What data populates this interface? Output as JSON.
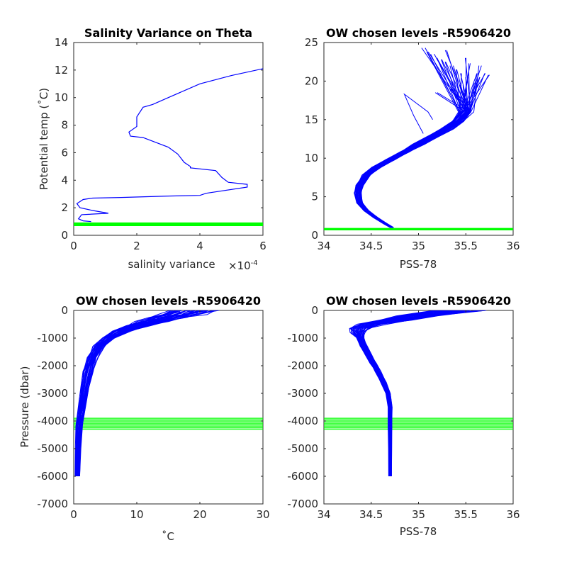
{
  "colors": {
    "profile": "#0000ff",
    "chosen_levels": "#00ff00",
    "axes": "#262626"
  },
  "chart_data": [
    {
      "id": "tl",
      "type": "line",
      "title": "Salinity Variance on Theta",
      "xlabel": "salinity variance",
      "x_exponent": "×10",
      "x_exponent_power": "-4",
      "ylabel": "Potential temp (˚C)",
      "xlim": [
        0,
        6
      ],
      "ylim": [
        0,
        14
      ],
      "xticks": [
        0,
        2,
        4,
        6
      ],
      "yticks": [
        0,
        2,
        4,
        6,
        8,
        10,
        12,
        14
      ],
      "xtick_labels": [
        "0",
        "2",
        "4",
        "6"
      ],
      "ytick_labels": [
        "0",
        "2",
        "4",
        "6",
        "8",
        "10",
        "12",
        "14"
      ],
      "series": [
        {
          "x": [
            0.55,
            0.3,
            0.15,
            0.25,
            1.1,
            0.6,
            0.2,
            0.1,
            0.3,
            0.6,
            1.5,
            3.0,
            4.0,
            4.2,
            5.5,
            5.5,
            4.9,
            4.7,
            4.5,
            3.7,
            3.7,
            3.5,
            3.3,
            3.0,
            2.2,
            1.8,
            1.75,
            2.0,
            2.0,
            2.2,
            2.5,
            3.0,
            4.0,
            5.0,
            6.0
          ],
          "y": [
            1.0,
            1.05,
            1.2,
            1.5,
            1.6,
            1.8,
            2.0,
            2.3,
            2.6,
            2.7,
            2.75,
            2.85,
            2.9,
            3.05,
            3.5,
            3.7,
            3.85,
            4.2,
            4.7,
            4.9,
            5.0,
            5.3,
            5.9,
            6.4,
            7.1,
            7.2,
            7.5,
            7.9,
            8.6,
            9.3,
            9.5,
            10.0,
            11.0,
            11.6,
            12.1
          ]
        }
      ],
      "chosen_levels": {
        "orientation": "horizontal",
        "values": [
          0.7,
          0.75,
          0.8,
          0.85,
          0.9
        ]
      }
    },
    {
      "id": "tr",
      "type": "line",
      "title": "OW chosen levels -R5906420",
      "xlabel": "PSS-78",
      "ylabel": "",
      "xlim": [
        34,
        36
      ],
      "ylim": [
        0,
        25
      ],
      "xticks": [
        34,
        34.5,
        35,
        35.5,
        36
      ],
      "yticks": [
        0,
        5,
        10,
        15,
        20,
        25
      ],
      "xtick_labels": [
        "34",
        "34.5",
        "35",
        "35.5",
        "36"
      ],
      "ytick_labels": [
        "0",
        "5",
        "10",
        "15",
        "20",
        "25"
      ],
      "profile_base": {
        "x": [
          34.72,
          34.65,
          34.55,
          34.45,
          34.38,
          34.36,
          34.38,
          34.45,
          34.55,
          34.7,
          34.85,
          35.0,
          35.15,
          35.3,
          35.42,
          35.5
        ],
        "y": [
          1.0,
          1.5,
          2.3,
          3.2,
          4.2,
          5.5,
          6.5,
          7.8,
          8.8,
          9.8,
          10.8,
          11.8,
          12.8,
          13.8,
          14.8,
          16.0
        ]
      },
      "profile_count": 44,
      "profile_x_spread": 0.1,
      "profile_tops": {
        "x": [
          35.05,
          35.1,
          35.15,
          35.2,
          35.25,
          35.3,
          35.35,
          35.4,
          35.45,
          35.5,
          35.55,
          35.6,
          35.65,
          35.7,
          35.75,
          35.45,
          35.2,
          35.35,
          35.6,
          35.5,
          35.3,
          35.65
        ],
        "y": [
          24.3,
          23.8,
          23.5,
          23.0,
          22.8,
          22.5,
          22.0,
          21.5,
          21.0,
          20.5,
          22.3,
          21.0,
          20.5,
          21.0,
          20.8,
          19.5,
          18.5,
          19.0,
          19.8,
          23.0,
          24.0,
          22.0
        ]
      },
      "stray_profile": {
        "x": [
          35.05,
          34.95,
          34.85,
          35.1,
          35.15
        ],
        "y": [
          13.2,
          15.5,
          18.3,
          16.0,
          15.0
        ]
      },
      "chosen_levels": {
        "orientation": "horizontal",
        "values": [
          0.7,
          0.75,
          0.8,
          0.85,
          0.9
        ]
      }
    },
    {
      "id": "bl",
      "type": "line",
      "title": "OW chosen levels -R5906420",
      "xlabel": "˚C",
      "ylabel": "Pressure (dbar)",
      "xlim": [
        0,
        30
      ],
      "ylim": [
        -7000,
        0
      ],
      "xticks": [
        0,
        10,
        20,
        30
      ],
      "yticks": [
        -7000,
        -6000,
        -5000,
        -4000,
        -3000,
        -2000,
        -1000,
        0
      ],
      "xtick_labels": [
        "0",
        "10",
        "20",
        "30"
      ],
      "ytick_labels": [
        "-7000",
        "-6000",
        "-5000",
        "-4000",
        "-3000",
        "-2000",
        "-1000",
        "0"
      ],
      "profile_base": {
        "x": [
          0.6,
          0.7,
          0.9,
          1.3,
          1.8,
          2.3,
          3.0,
          4.0,
          5.5,
          7.5,
          10.0,
          12.5,
          15.0,
          17.0,
          19.0
        ],
        "y": [
          -6000,
          -5000,
          -4200,
          -3500,
          -2800,
          -2200,
          -1700,
          -1300,
          -1000,
          -750,
          -550,
          -400,
          -250,
          -150,
          0
        ]
      },
      "profile_count": 40,
      "profile_x_spread": 2.0,
      "profile_top_x_spread": 5.5,
      "chosen_levels": {
        "orientation": "horizontal",
        "values": [
          -3900,
          -3950,
          -4000,
          -4050,
          -4100,
          -4150,
          -4200,
          -4250,
          -4300
        ]
      }
    },
    {
      "id": "br",
      "type": "line",
      "title": "OW chosen levels -R5906420",
      "xlabel": "PSS-78",
      "ylabel": "",
      "xlim": [
        34,
        36
      ],
      "ylim": [
        -7000,
        0
      ],
      "xticks": [
        34,
        34.5,
        35,
        35.5,
        36
      ],
      "yticks": [
        -7000,
        -6000,
        -5000,
        -4000,
        -3000,
        -2000,
        -1000,
        0
      ],
      "xtick_labels": [
        "34",
        "34.5",
        "35",
        "35.5",
        "36"
      ],
      "ytick_labels": [
        "-7000",
        "-6000",
        "-5000",
        "-4000",
        "-3000",
        "-2000",
        "-1000",
        "0"
      ],
      "profile_base": {
        "x": [
          34.7,
          34.7,
          34.7,
          34.7,
          34.68,
          34.63,
          34.57,
          34.52,
          34.47,
          34.42,
          34.38,
          34.36,
          34.38,
          34.5,
          34.75,
          35.0,
          35.2,
          35.4
        ],
        "y": [
          -6000,
          -5000,
          -4200,
          -3500,
          -3000,
          -2600,
          -2200,
          -1900,
          -1600,
          -1300,
          -1000,
          -800,
          -650,
          -500,
          -350,
          -200,
          -100,
          0
        ]
      },
      "profile_count": 40,
      "profile_x_spread": 0.08,
      "profile_top_x_spread": 0.45,
      "chosen_levels": {
        "orientation": "horizontal",
        "values": [
          -3900,
          -3950,
          -4000,
          -4050,
          -4100,
          -4150,
          -4200,
          -4250,
          -4300
        ]
      }
    }
  ]
}
